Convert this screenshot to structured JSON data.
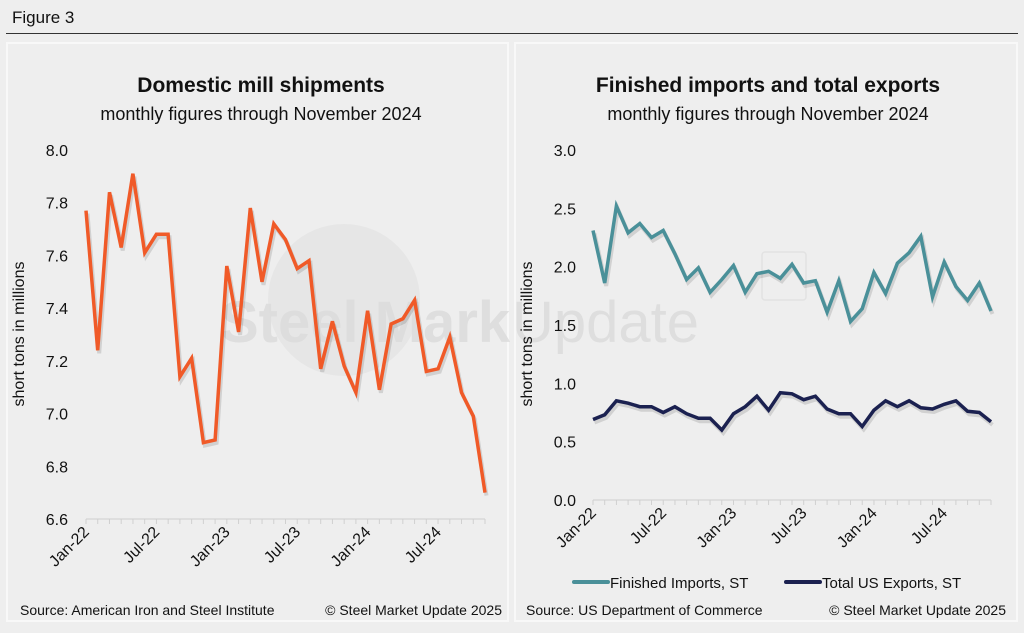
{
  "figure_label": "Figure 3",
  "watermark": {
    "brand_bold": "Steel Market",
    "brand_light": "Update"
  },
  "chart_data": [
    {
      "type": "line",
      "title": "Domestic mill shipments",
      "subtitle": "monthly figures through November 2024",
      "xlabel": "",
      "ylabel": "short tons in millions",
      "ylim": [
        6.6,
        8.0
      ],
      "yticks": [
        "8.0",
        "7.8",
        "7.6",
        "7.4",
        "7.2",
        "7.0",
        "6.8",
        "6.6"
      ],
      "ytick_values": [
        8.0,
        7.8,
        7.6,
        7.4,
        7.2,
        7.0,
        6.8,
        6.6
      ],
      "xtick_labels": [
        "Jan-22",
        "Jul-22",
        "Jan-23",
        "Jul-23",
        "Jan-24",
        "Jul-24"
      ],
      "xtick_index": [
        0,
        6,
        12,
        18,
        24,
        30
      ],
      "x": [
        "Jan-22",
        "Feb-22",
        "Mar-22",
        "Apr-22",
        "May-22",
        "Jun-22",
        "Jul-22",
        "Aug-22",
        "Sep-22",
        "Oct-22",
        "Nov-22",
        "Dec-22",
        "Jan-23",
        "Feb-23",
        "Mar-23",
        "Apr-23",
        "May-23",
        "Jun-23",
        "Jul-23",
        "Aug-23",
        "Sep-23",
        "Oct-23",
        "Nov-23",
        "Dec-23",
        "Jan-24",
        "Feb-24",
        "Mar-24",
        "Apr-24",
        "May-24",
        "Jun-24",
        "Jul-24",
        "Aug-24",
        "Sep-24",
        "Oct-24",
        "Nov-24"
      ],
      "series": [
        {
          "name": "Domestic mill shipments",
          "color": "#f05a28",
          "values": [
            7.77,
            7.24,
            7.84,
            7.63,
            7.91,
            7.61,
            7.68,
            7.68,
            7.14,
            7.21,
            6.89,
            6.9,
            7.56,
            7.31,
            7.78,
            7.5,
            7.72,
            7.66,
            7.55,
            7.58,
            7.17,
            7.35,
            7.18,
            7.08,
            7.39,
            7.09,
            7.34,
            7.36,
            7.43,
            7.16,
            7.17,
            7.29,
            7.08,
            6.99,
            6.7
          ]
        }
      ],
      "legend": "none",
      "grid": false,
      "source": "Source: American Iron and Steel Institute",
      "copyright": "© Steel Market Update 2025"
    },
    {
      "type": "line",
      "title": "Finished imports and total exports",
      "subtitle": "monthly figures through November 2024",
      "xlabel": "",
      "ylabel": "short tons in millions",
      "ylim": [
        0.0,
        3.0
      ],
      "yticks": [
        "3.0",
        "2.5",
        "2.0",
        "1.5",
        "1.0",
        "0.5",
        "0.0"
      ],
      "ytick_values": [
        3.0,
        2.5,
        2.0,
        1.5,
        1.0,
        0.5,
        0.0
      ],
      "xtick_labels": [
        "Jan-22",
        "Jul-22",
        "Jan-23",
        "Jul-23",
        "Jan-24",
        "Jul-24"
      ],
      "xtick_index": [
        0,
        6,
        12,
        18,
        24,
        30
      ],
      "x": [
        "Jan-22",
        "Feb-22",
        "Mar-22",
        "Apr-22",
        "May-22",
        "Jun-22",
        "Jul-22",
        "Aug-22",
        "Sep-22",
        "Oct-22",
        "Nov-22",
        "Dec-22",
        "Jan-23",
        "Feb-23",
        "Mar-23",
        "Apr-23",
        "May-23",
        "Jun-23",
        "Jul-23",
        "Aug-23",
        "Sep-23",
        "Oct-23",
        "Nov-23",
        "Dec-23",
        "Jan-24",
        "Feb-24",
        "Mar-24",
        "Apr-24",
        "May-24",
        "Jun-24",
        "Jul-24",
        "Aug-24",
        "Sep-24",
        "Oct-24",
        "Nov-24"
      ],
      "series": [
        {
          "name": "Finished Imports, ST",
          "color": "#4a9099",
          "values": [
            2.31,
            1.86,
            2.52,
            2.29,
            2.37,
            2.25,
            2.31,
            2.11,
            1.89,
            1.99,
            1.78,
            1.89,
            2.01,
            1.78,
            1.94,
            1.96,
            1.9,
            2.02,
            1.86,
            1.88,
            1.61,
            1.88,
            1.53,
            1.64,
            1.95,
            1.77,
            2.03,
            2.12,
            2.26,
            1.74,
            2.04,
            1.83,
            1.71,
            1.86,
            1.62
          ]
        },
        {
          "name": "Total US Exports, ST",
          "color": "#1b2150",
          "values": [
            0.69,
            0.73,
            0.85,
            0.83,
            0.8,
            0.8,
            0.75,
            0.8,
            0.74,
            0.7,
            0.7,
            0.6,
            0.74,
            0.8,
            0.89,
            0.77,
            0.92,
            0.91,
            0.86,
            0.89,
            0.78,
            0.74,
            0.74,
            0.63,
            0.77,
            0.85,
            0.8,
            0.85,
            0.79,
            0.78,
            0.82,
            0.85,
            0.76,
            0.75,
            0.67
          ]
        }
      ],
      "legend": "bottom",
      "grid": false,
      "source": "Source: US Department of Commerce",
      "copyright": "© Steel Market Update 2025"
    }
  ]
}
